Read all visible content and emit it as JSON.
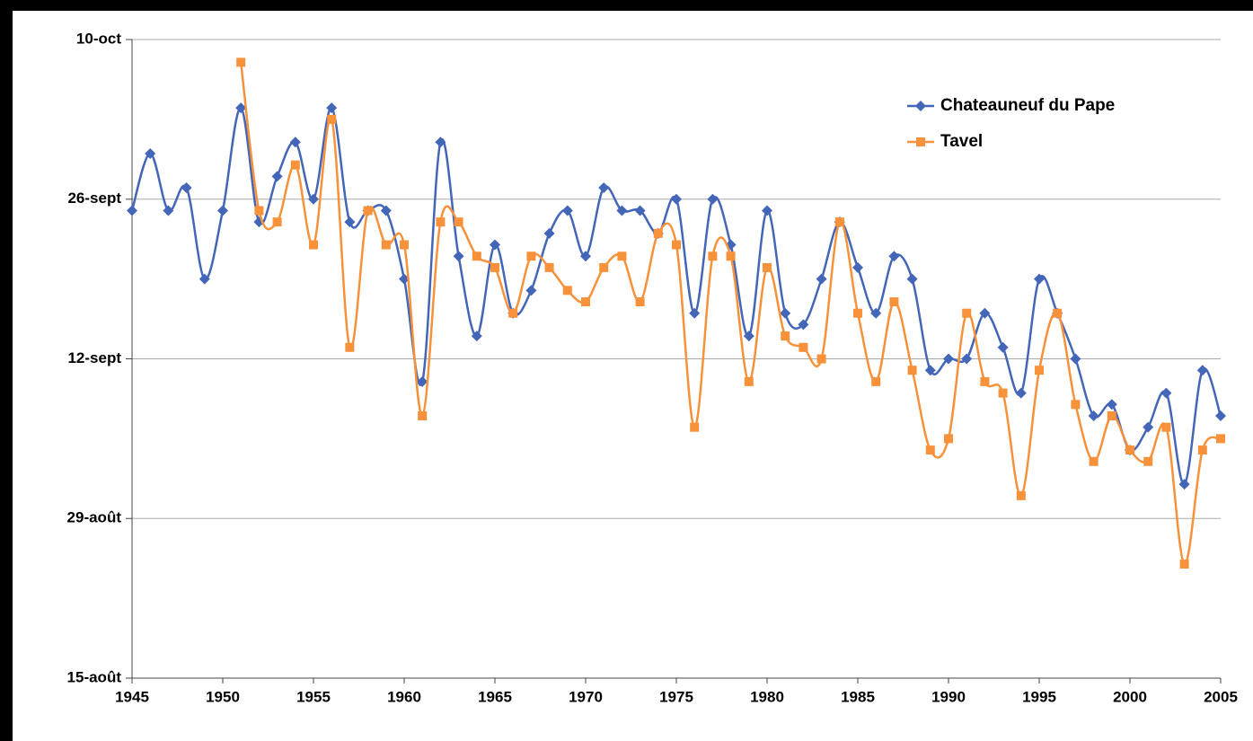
{
  "chart_data": {
    "type": "line",
    "x": [
      1945,
      1946,
      1947,
      1948,
      1949,
      1950,
      1951,
      1952,
      1953,
      1954,
      1955,
      1956,
      1957,
      1958,
      1959,
      1960,
      1961,
      1962,
      1963,
      1964,
      1965,
      1966,
      1967,
      1968,
      1969,
      1970,
      1971,
      1972,
      1973,
      1974,
      1975,
      1976,
      1977,
      1978,
      1979,
      1980,
      1981,
      1982,
      1983,
      1984,
      1985,
      1986,
      1987,
      1988,
      1989,
      1990,
      1991,
      1992,
      1993,
      1994,
      1995,
      1996,
      1997,
      1998,
      1999,
      2000,
      2001,
      2002,
      2003,
      2004,
      2005
    ],
    "series": [
      {
        "name": "Chateauneuf du Pape",
        "color": "#4466b8",
        "marker": "diamond",
        "values": [
          268,
          273,
          268,
          270,
          262,
          268,
          277,
          267,
          271,
          274,
          269,
          277,
          267,
          268,
          268,
          262,
          253,
          274,
          264,
          257,
          265,
          259,
          261,
          266,
          268,
          264,
          270,
          268,
          268,
          266,
          269,
          259,
          269,
          265,
          257,
          268,
          259,
          258,
          262,
          267,
          263,
          259,
          264,
          262,
          254,
          255,
          255,
          259,
          256,
          252,
          262,
          259,
          255,
          250,
          251,
          247,
          249,
          252,
          244,
          254,
          250
        ]
      },
      {
        "name": "Tavel",
        "color": "#f7913a",
        "marker": "square",
        "values": [
          null,
          null,
          null,
          null,
          null,
          null,
          281,
          268,
          267,
          272,
          265,
          276,
          256,
          268,
          265,
          265,
          250,
          267,
          267,
          264,
          263,
          259,
          264,
          263,
          261,
          260,
          263,
          264,
          260,
          266,
          265,
          249,
          264,
          264,
          253,
          263,
          257,
          256,
          255,
          267,
          259,
          253,
          260,
          254,
          247,
          248,
          259,
          253,
          252,
          243,
          254,
          259,
          251,
          246,
          250,
          247,
          246,
          249,
          237,
          247,
          248
        ]
      }
    ],
    "xlim": [
      1945,
      2005
    ],
    "xticks": [
      1945,
      1950,
      1955,
      1960,
      1965,
      1970,
      1975,
      1980,
      1985,
      1990,
      1995,
      2000,
      2005
    ],
    "ylim": [
      227,
      283
    ],
    "yticks": [
      {
        "value": 227,
        "label": "15-août"
      },
      {
        "value": 241,
        "label": "29-août"
      },
      {
        "value": 255,
        "label": "12-sept"
      },
      {
        "value": 269,
        "label": "26-sept"
      },
      {
        "value": 283,
        "label": "10-oct"
      }
    ],
    "grid": true,
    "legend": "upper right"
  }
}
